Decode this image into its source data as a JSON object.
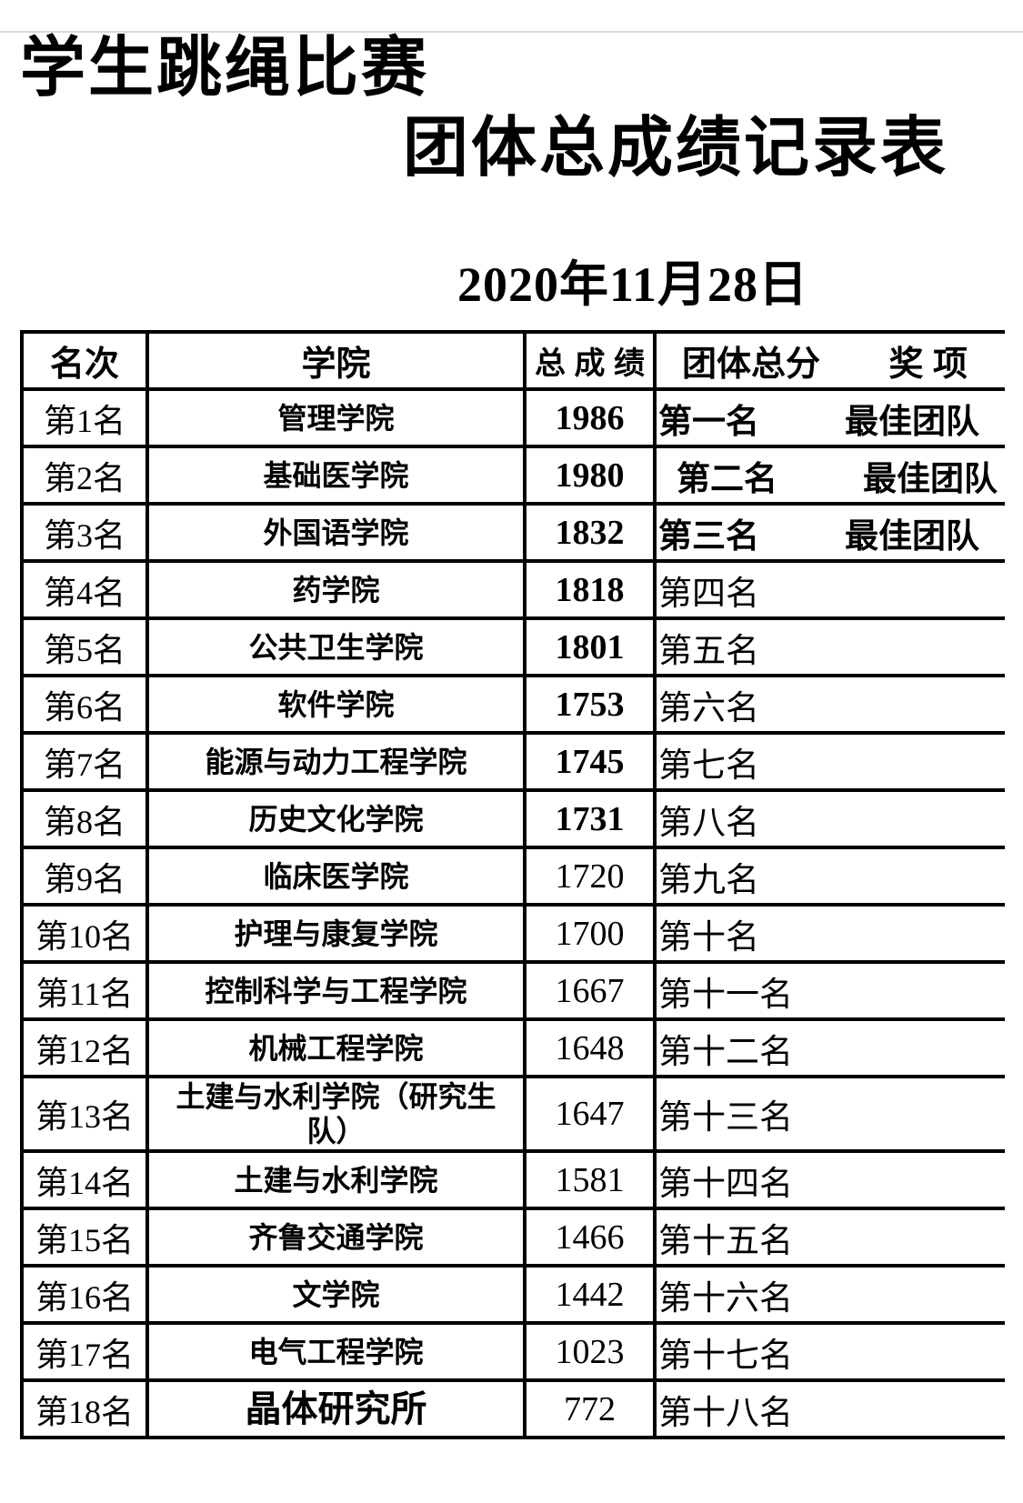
{
  "doc": {
    "title_line1": "学生跳绳比赛",
    "title_line2": "团体总成绩记录表",
    "date": "2020年11月28日"
  },
  "table": {
    "headers": {
      "rank": "名次",
      "college": "学院",
      "score": "总 成 绩",
      "team_total": "团体总分",
      "award": "奖 项"
    },
    "rows": [
      {
        "rank": "第1名",
        "college": "管理学院",
        "score": "1986",
        "team_rank": "第一名",
        "award": "最佳团队",
        "score_bold": true,
        "team_bold": true
      },
      {
        "rank": "第2名",
        "college": "基础医学院",
        "score": "1980",
        "team_rank": "第二名",
        "award": "最佳团队",
        "score_bold": true,
        "team_bold": true,
        "indent": true
      },
      {
        "rank": "第3名",
        "college": "外国语学院",
        "score": "1832",
        "team_rank": "第三名",
        "award": "最佳团队",
        "score_bold": true,
        "team_bold": true
      },
      {
        "rank": "第4名",
        "college": "药学院",
        "score": "1818",
        "team_rank": "第四名",
        "score_bold": true
      },
      {
        "rank": "第5名",
        "college": "公共卫生学院",
        "score": "1801",
        "team_rank": "第五名",
        "score_bold": true
      },
      {
        "rank": "第6名",
        "college": "软件学院",
        "score": "1753",
        "team_rank": "第六名",
        "score_bold": true
      },
      {
        "rank": "第7名",
        "college": "能源与动力工程学院",
        "score": "1745",
        "team_rank": "第七名",
        "score_bold": true
      },
      {
        "rank": "第8名",
        "college": "历史文化学院",
        "score": "1731",
        "team_rank": "第八名",
        "score_bold": true
      },
      {
        "rank": "第9名",
        "college": "临床医学院",
        "score": "1720",
        "team_rank": "第九名"
      },
      {
        "rank": "第10名",
        "college": "护理与康复学院",
        "score": "1700",
        "team_rank": "第十名"
      },
      {
        "rank": "第11名",
        "college": "控制科学与工程学院",
        "score": "1667",
        "team_rank": "第十一名"
      },
      {
        "rank": "第12名",
        "college": "机械工程学院",
        "score": "1648",
        "team_rank": "第十二名"
      },
      {
        "rank": "第13名",
        "college": "土建与水利学院（研究生\n队）",
        "score": "1647",
        "team_rank": "第十三名",
        "tall": true
      },
      {
        "rank": "第14名",
        "college": "土建与水利学院",
        "score": "1581",
        "team_rank": "第十四名"
      },
      {
        "rank": "第15名",
        "college": "齐鲁交通学院",
        "score": "1466",
        "team_rank": "第十五名"
      },
      {
        "rank": "第16名",
        "college": "文学院",
        "score": "1442",
        "team_rank": "第十六名"
      },
      {
        "rank": "第17名",
        "college": "电气工程学院",
        "score": "1023",
        "team_rank": "第十七名"
      },
      {
        "rank": "第18名",
        "college": "晶体研究所",
        "score": "772",
        "team_rank": "第十八名",
        "college_large": true
      }
    ]
  },
  "colors": {
    "text": "#000000",
    "border": "#000000",
    "top_rule": "#d9d9d9",
    "background": "#ffffff"
  }
}
